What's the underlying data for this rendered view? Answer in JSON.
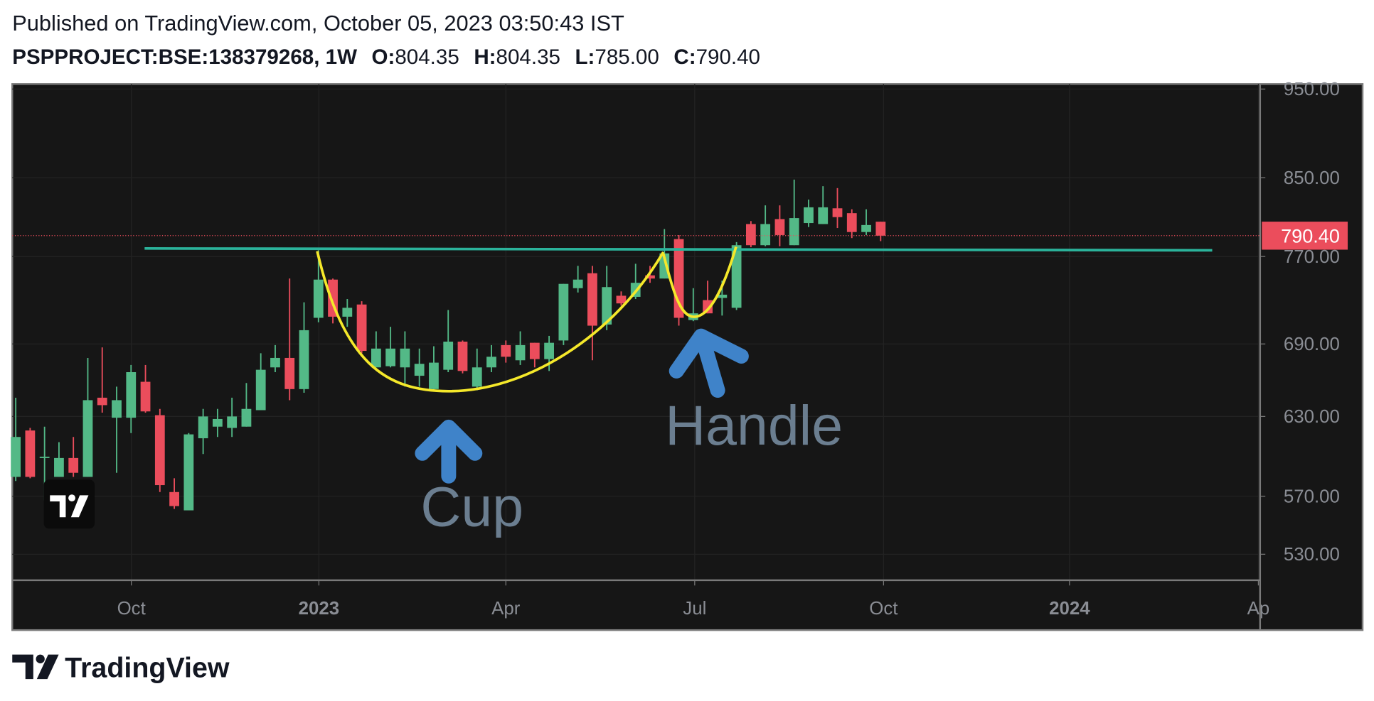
{
  "chart_data": {
    "type": "candlestick",
    "title": "Published on TradingView.com, October 05, 2023 03:50:43 IST",
    "brand": "TradingView",
    "legend_labels": [
      "O:",
      "H:",
      "L:",
      "C:"
    ],
    "series": [
      {
        "name": "PSPPROJECT:BSE:138379268, 1W",
        "up_color": "#53b987",
        "down_color": "#eb4d5c",
        "open": [
          584,
          619,
          598,
          584,
          598,
          584,
          645,
          629,
          629,
          658,
          631,
          573,
          560,
          613,
          622,
          621,
          622,
          635,
          670,
          678,
          652,
          713,
          748,
          714,
          725,
          670,
          671,
          670,
          663,
          652,
          668,
          692,
          654,
          670,
          689,
          676,
          691,
          677,
          693,
          740,
          754,
          707,
          733,
          732,
          752,
          749,
          787,
          711,
          729,
          731,
          722,
          802,
          781,
          807,
          781,
          803,
          802,
          818,
          813,
          794,
          804.35
        ],
        "high": [
          645,
          621,
          622,
          610,
          614,
          678,
          687,
          654,
          672,
          672,
          636,
          583,
          617,
          636,
          636,
          645,
          657,
          682,
          689,
          749,
          727,
          776,
          749,
          730,
          728,
          701,
          705,
          701,
          686,
          688,
          720,
          693,
          686,
          689,
          693,
          701,
          691,
          697,
          744,
          761,
          761,
          761,
          737,
          763,
          761,
          797,
          791,
          740,
          747,
          747,
          784,
          805,
          821,
          821,
          848,
          827,
          841,
          839,
          817,
          817,
          804.35
        ],
        "low": [
          581,
          583,
          567,
          584,
          584,
          584,
          633,
          587,
          617,
          633,
          573,
          561,
          560,
          601,
          614,
          614,
          622,
          635,
          666,
          643,
          649,
          709,
          708,
          705,
          682,
          670,
          670,
          654,
          654,
          651,
          666,
          665,
          651,
          666,
          674,
          672,
          670,
          667,
          689,
          736,
          676,
          702,
          724,
          730,
          745,
          749,
          706,
          710,
          717,
          715,
          720,
          779,
          780,
          780,
          781,
          799,
          802,
          798,
          788,
          791,
          785
        ],
        "close": [
          614,
          584,
          599,
          598,
          587,
          643,
          639,
          643,
          666,
          634,
          578,
          563,
          616,
          630,
          628,
          630,
          636,
          668,
          678,
          652,
          702,
          748,
          714,
          722,
          684,
          686,
          686,
          686,
          673,
          674,
          692,
          667,
          670,
          679,
          679,
          689,
          677,
          691,
          744,
          748,
          706,
          741,
          726,
          745,
          749,
          773,
          713,
          717,
          717,
          734,
          781,
          781,
          802,
          791,
          808,
          819,
          819,
          809,
          794,
          801,
          790.4
        ],
        "last_value_labels": {
          "open": "804.35",
          "high": "804.35",
          "low": "785.00",
          "close": "790.40"
        }
      }
    ],
    "trendline": {
      "x": [
        8.94,
        83.0
      ],
      "y": [
        777.8,
        776
      ],
      "color": "#2bb39b"
    },
    "annotations": [
      "Cup",
      "Handle"
    ],
    "log_scale": true,
    "grid": true,
    "xlim": [
      -0.24,
      86.32
    ],
    "xticks": [
      {
        "value": 8.02,
        "label": "Oct"
      },
      {
        "value": 21.03,
        "label": "2023"
      },
      {
        "value": 34.0,
        "label": "Apr"
      },
      {
        "value": 47.1,
        "label": "Jul"
      },
      {
        "value": 60.2,
        "label": "Oct"
      },
      {
        "value": 73.1,
        "label": "2024"
      },
      {
        "value": 86.2,
        "label": "Ap"
      }
    ],
    "ylim": [
      513,
      956
    ],
    "yticks": [
      {
        "value": 530,
        "label": "530.00"
      },
      {
        "value": 570,
        "label": "570.00"
      },
      {
        "value": 630,
        "label": "630.00"
      },
      {
        "value": 690,
        "label": "690.00"
      },
      {
        "value": 770,
        "label": "770.00"
      },
      {
        "value": 850,
        "label": "850.00"
      },
      {
        "value": 950,
        "label": "950.00"
      }
    ]
  }
}
